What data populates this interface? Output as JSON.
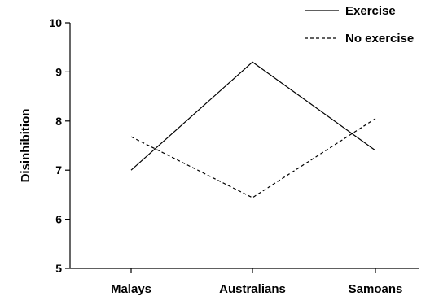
{
  "chart_data": {
    "type": "line",
    "title": "",
    "xlabel": "",
    "ylabel": "Disinhibition",
    "categories": [
      "Malays",
      "Australians",
      "Samoans"
    ],
    "ylim": [
      5,
      10
    ],
    "yticks": [
      "5",
      "6",
      "7",
      "8",
      "9",
      "10"
    ],
    "grid": false,
    "legend_position": "top-right",
    "series": [
      {
        "name": "Exercise",
        "values": [
          7.0,
          9.2,
          7.4
        ],
        "line_style": "solid",
        "color": "#000000"
      },
      {
        "name": "No exercise",
        "values": [
          7.68,
          6.44,
          8.05
        ],
        "line_style": "dashed",
        "color": "#000000"
      }
    ]
  }
}
